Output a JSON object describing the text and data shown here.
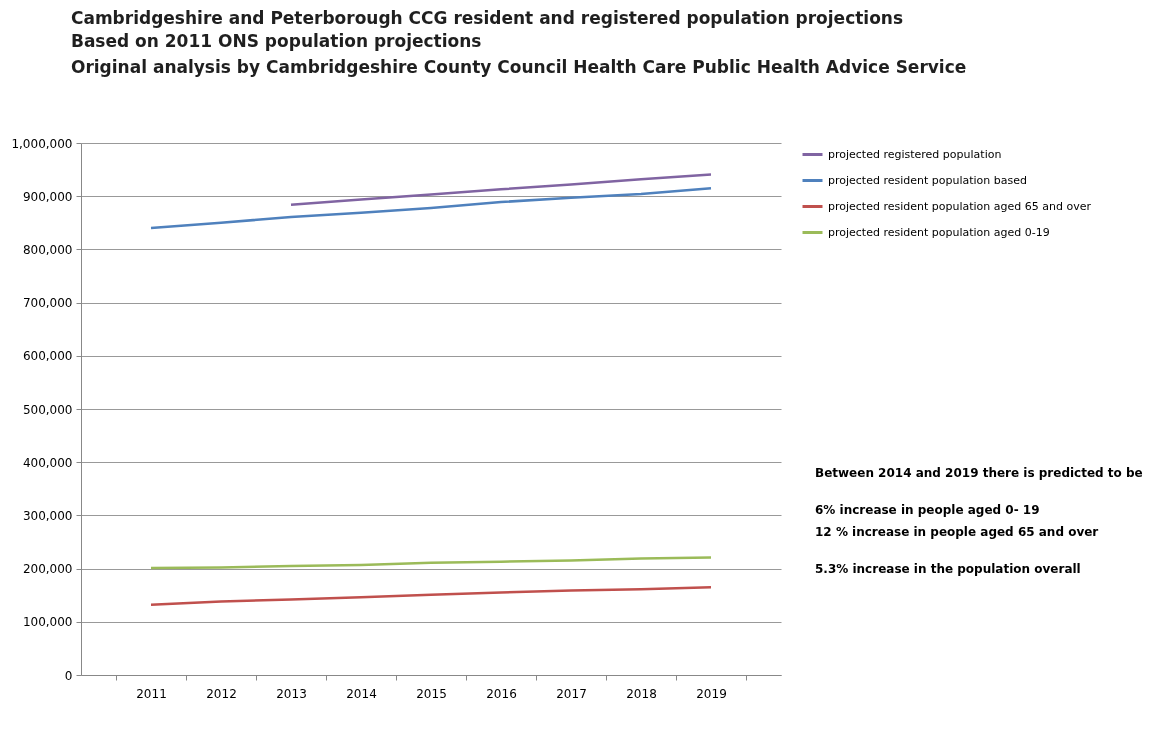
{
  "chart_data": {
    "type": "line",
    "title": "Cambridgeshire and Peterborough CCG resident and registered population projections",
    "subtitle": "Based on 2011 ONS population projections\nOriginal analysis by Cambridgeshire County Council Health Care Public Health Advice Service",
    "categories": [
      "2011",
      "2012",
      "2013",
      "2014",
      "2015",
      "2016",
      "2017",
      "2018",
      "2019"
    ],
    "series": [
      {
        "name": "projected registered population",
        "color": "#8064a2",
        "values": [
          null,
          null,
          884000,
          894000,
          903000,
          913000,
          922000,
          932000,
          941000
        ]
      },
      {
        "name": "projected resident population based",
        "color": "#4f81bd",
        "values": [
          840000,
          850000,
          861000,
          869000,
          878000,
          889000,
          897000,
          904000,
          915000
        ]
      },
      {
        "name": "projected resident population aged 65 and over",
        "color": "#c0504d",
        "values": [
          132000,
          138000,
          142000,
          146000,
          151000,
          155000,
          159000,
          161000,
          165000
        ]
      },
      {
        "name": "projected resident population aged 0-19",
        "color": "#9bbb59",
        "values": [
          201000,
          202000,
          205000,
          207000,
          211000,
          213000,
          215000,
          219000,
          221000
        ]
      }
    ],
    "ylim": [
      0,
      1000000
    ],
    "yticks": [
      0,
      {
        "value": 100000,
        "label": "100,000"
      },
      {
        "value": 200000,
        "label": "200,000"
      },
      {
        "value": 300000,
        "label": "300,000"
      },
      {
        "value": 400000,
        "label": "400,000"
      },
      {
        "value": 500000,
        "label": "500,000"
      },
      {
        "value": 600000,
        "label": "600,000"
      },
      {
        "value": 700000,
        "label": "700,000"
      },
      {
        "value": 800000,
        "label": "800,000"
      },
      {
        "value": 900000,
        "label": "900,000"
      },
      {
        "value": 1000000,
        "label": "1,000,000"
      }
    ],
    "grid": "y",
    "legend": "right",
    "marker": "none",
    "line_style": "solid",
    "annotations": [
      "Between 2014 and 2019 there is predicted to be",
      "6% increase in people aged 0- 19",
      "12 % increase in people aged 65 and over",
      "5.3% increase in the population overall"
    ]
  }
}
